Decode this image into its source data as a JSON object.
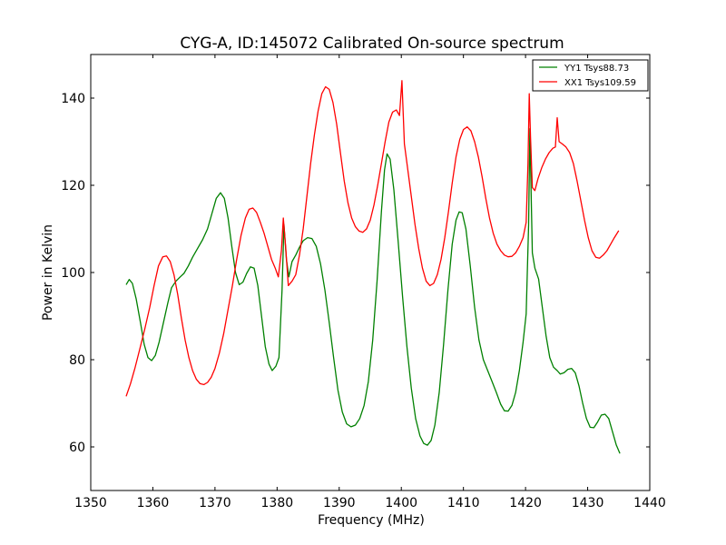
{
  "chart_data": {
    "type": "line",
    "title": "CYG-A, ID:145072 Calibrated On-source spectrum",
    "xlabel": "Frequency (MHz)",
    "ylabel": "Power in Kelvin",
    "xlim": [
      1350,
      1440
    ],
    "ylim": [
      50,
      150
    ],
    "xticks": [
      1350,
      1360,
      1370,
      1380,
      1390,
      1400,
      1410,
      1420,
      1430,
      1440
    ],
    "yticks": [
      60,
      80,
      100,
      120,
      140
    ],
    "grid": false,
    "legend_position": "top-right",
    "series": [
      {
        "name": "YY1 Tsys88.73",
        "color": "#008000",
        "points": [
          [
            1355.7,
            97.2
          ],
          [
            1356.2,
            98.4
          ],
          [
            1356.7,
            97.5
          ],
          [
            1357.3,
            94.0
          ],
          [
            1358.0,
            88.5
          ],
          [
            1358.6,
            83.5
          ],
          [
            1359.2,
            80.5
          ],
          [
            1359.8,
            79.8
          ],
          [
            1360.4,
            81.0
          ],
          [
            1361.0,
            84.0
          ],
          [
            1361.7,
            88.5
          ],
          [
            1362.4,
            93.0
          ],
          [
            1363.0,
            96.5
          ],
          [
            1363.7,
            98.0
          ],
          [
            1364.4,
            99.0
          ],
          [
            1365.0,
            99.8
          ],
          [
            1365.7,
            101.5
          ],
          [
            1366.4,
            103.5
          ],
          [
            1367.2,
            105.5
          ],
          [
            1368.0,
            107.5
          ],
          [
            1368.8,
            110.0
          ],
          [
            1369.5,
            113.5
          ],
          [
            1370.2,
            117.0
          ],
          [
            1370.9,
            118.3
          ],
          [
            1371.5,
            117.0
          ],
          [
            1372.1,
            112.5
          ],
          [
            1372.7,
            106.0
          ],
          [
            1373.3,
            100.0
          ],
          [
            1373.9,
            97.2
          ],
          [
            1374.5,
            97.8
          ],
          [
            1375.1,
            99.8
          ],
          [
            1375.7,
            101.3
          ],
          [
            1376.3,
            101.0
          ],
          [
            1376.9,
            97.0
          ],
          [
            1377.5,
            90.0
          ],
          [
            1378.1,
            83.0
          ],
          [
            1378.7,
            79.0
          ],
          [
            1379.2,
            77.5
          ],
          [
            1379.8,
            78.5
          ],
          [
            1380.3,
            80.5
          ],
          [
            1380.8,
            96.0
          ],
          [
            1381.1,
            111.0
          ],
          [
            1381.5,
            103.0
          ],
          [
            1381.9,
            99.0
          ],
          [
            1382.4,
            102.5
          ],
          [
            1383.0,
            104.0
          ],
          [
            1383.6,
            105.8
          ],
          [
            1384.2,
            107.3
          ],
          [
            1384.9,
            108.0
          ],
          [
            1385.6,
            107.8
          ],
          [
            1386.3,
            106.0
          ],
          [
            1387.0,
            102.0
          ],
          [
            1387.7,
            96.0
          ],
          [
            1388.4,
            88.5
          ],
          [
            1389.1,
            80.5
          ],
          [
            1389.8,
            73.0
          ],
          [
            1390.5,
            68.0
          ],
          [
            1391.2,
            65.3
          ],
          [
            1391.9,
            64.6
          ],
          [
            1392.6,
            65.0
          ],
          [
            1393.3,
            66.5
          ],
          [
            1394.0,
            69.5
          ],
          [
            1394.7,
            75.0
          ],
          [
            1395.4,
            84.5
          ],
          [
            1396.1,
            98.0
          ],
          [
            1396.8,
            114.0
          ],
          [
            1397.3,
            123.5
          ],
          [
            1397.7,
            127.2
          ],
          [
            1398.2,
            126.0
          ],
          [
            1398.8,
            119.0
          ],
          [
            1399.5,
            107.0
          ],
          [
            1400.2,
            94.5
          ],
          [
            1400.9,
            83.0
          ],
          [
            1401.6,
            73.5
          ],
          [
            1402.3,
            66.5
          ],
          [
            1403.0,
            62.5
          ],
          [
            1403.6,
            60.8
          ],
          [
            1404.2,
            60.4
          ],
          [
            1404.8,
            61.5
          ],
          [
            1405.4,
            65.0
          ],
          [
            1406.1,
            72.5
          ],
          [
            1406.8,
            83.5
          ],
          [
            1407.5,
            96.0
          ],
          [
            1408.2,
            106.5
          ],
          [
            1408.8,
            112.0
          ],
          [
            1409.3,
            113.9
          ],
          [
            1409.8,
            113.7
          ],
          [
            1410.4,
            110.0
          ],
          [
            1411.1,
            101.5
          ],
          [
            1411.8,
            92.0
          ],
          [
            1412.5,
            84.5
          ],
          [
            1413.2,
            80.0
          ],
          [
            1413.9,
            77.5
          ],
          [
            1414.6,
            75.0
          ],
          [
            1415.3,
            72.5
          ],
          [
            1416.0,
            69.8
          ],
          [
            1416.6,
            68.3
          ],
          [
            1417.2,
            68.2
          ],
          [
            1417.8,
            69.5
          ],
          [
            1418.4,
            72.5
          ],
          [
            1419.0,
            77.5
          ],
          [
            1419.6,
            84.0
          ],
          [
            1420.1,
            90.5
          ],
          [
            1420.5,
            111.0
          ],
          [
            1420.7,
            133.0
          ],
          [
            1420.9,
            118.0
          ],
          [
            1421.1,
            104.5
          ],
          [
            1421.5,
            101.0
          ],
          [
            1422.1,
            98.5
          ],
          [
            1422.7,
            92.0
          ],
          [
            1423.3,
            85.5
          ],
          [
            1423.9,
            80.5
          ],
          [
            1424.5,
            78.3
          ],
          [
            1425.1,
            77.5
          ],
          [
            1425.6,
            76.7
          ],
          [
            1426.2,
            77.0
          ],
          [
            1426.8,
            77.8
          ],
          [
            1427.4,
            78.0
          ],
          [
            1428.0,
            77.0
          ],
          [
            1428.6,
            74.0
          ],
          [
            1429.2,
            70.0
          ],
          [
            1429.8,
            66.5
          ],
          [
            1430.4,
            64.5
          ],
          [
            1431.0,
            64.4
          ],
          [
            1431.6,
            65.7
          ],
          [
            1432.2,
            67.3
          ],
          [
            1432.8,
            67.5
          ],
          [
            1433.4,
            66.5
          ],
          [
            1434.0,
            63.5
          ],
          [
            1434.6,
            60.5
          ],
          [
            1435.2,
            58.5
          ]
        ]
      },
      {
        "name": "XX1 Tsys109.59",
        "color": "#ff0000",
        "points": [
          [
            1355.7,
            71.6
          ],
          [
            1356.4,
            74.5
          ],
          [
            1357.1,
            78.0
          ],
          [
            1357.9,
            82.5
          ],
          [
            1358.7,
            87.0
          ],
          [
            1359.5,
            92.0
          ],
          [
            1360.2,
            97.0
          ],
          [
            1360.9,
            101.5
          ],
          [
            1361.6,
            103.6
          ],
          [
            1362.2,
            103.8
          ],
          [
            1362.8,
            102.5
          ],
          [
            1363.4,
            99.5
          ],
          [
            1364.0,
            95.0
          ],
          [
            1364.6,
            89.5
          ],
          [
            1365.2,
            84.5
          ],
          [
            1365.8,
            80.5
          ],
          [
            1366.4,
            77.5
          ],
          [
            1367.0,
            75.5
          ],
          [
            1367.6,
            74.5
          ],
          [
            1368.2,
            74.3
          ],
          [
            1368.8,
            74.8
          ],
          [
            1369.4,
            76.0
          ],
          [
            1370.0,
            78.0
          ],
          [
            1370.7,
            81.5
          ],
          [
            1371.4,
            86.0
          ],
          [
            1372.1,
            91.5
          ],
          [
            1372.8,
            97.0
          ],
          [
            1373.5,
            103.0
          ],
          [
            1374.2,
            108.5
          ],
          [
            1374.9,
            112.5
          ],
          [
            1375.5,
            114.5
          ],
          [
            1376.1,
            114.8
          ],
          [
            1376.7,
            113.8
          ],
          [
            1377.3,
            111.5
          ],
          [
            1377.9,
            109.0
          ],
          [
            1378.5,
            106.0
          ],
          [
            1379.1,
            103.0
          ],
          [
            1379.7,
            101.0
          ],
          [
            1380.2,
            99.0
          ],
          [
            1380.7,
            105.0
          ],
          [
            1381.0,
            112.5
          ],
          [
            1381.4,
            105.5
          ],
          [
            1381.8,
            97.0
          ],
          [
            1382.4,
            98.0
          ],
          [
            1383.0,
            99.5
          ],
          [
            1383.6,
            104.0
          ],
          [
            1384.2,
            110.0
          ],
          [
            1384.8,
            117.5
          ],
          [
            1385.4,
            125.0
          ],
          [
            1386.0,
            131.5
          ],
          [
            1386.6,
            137.0
          ],
          [
            1387.2,
            141.0
          ],
          [
            1387.8,
            142.6
          ],
          [
            1388.4,
            142.0
          ],
          [
            1389.0,
            139.0
          ],
          [
            1389.6,
            134.0
          ],
          [
            1390.2,
            127.5
          ],
          [
            1390.8,
            121.0
          ],
          [
            1391.4,
            116.0
          ],
          [
            1392.0,
            112.5
          ],
          [
            1392.6,
            110.5
          ],
          [
            1393.2,
            109.5
          ],
          [
            1393.8,
            109.2
          ],
          [
            1394.4,
            110.0
          ],
          [
            1395.0,
            112.0
          ],
          [
            1395.6,
            115.5
          ],
          [
            1396.2,
            120.0
          ],
          [
            1396.8,
            125.0
          ],
          [
            1397.4,
            130.0
          ],
          [
            1398.0,
            134.5
          ],
          [
            1398.6,
            136.8
          ],
          [
            1399.2,
            137.3
          ],
          [
            1399.7,
            136.0
          ],
          [
            1400.1,
            144.0
          ],
          [
            1400.5,
            129.5
          ],
          [
            1401.0,
            124.0
          ],
          [
            1401.6,
            117.5
          ],
          [
            1402.2,
            111.0
          ],
          [
            1402.8,
            105.5
          ],
          [
            1403.4,
            101.0
          ],
          [
            1404.0,
            98.0
          ],
          [
            1404.6,
            97.0
          ],
          [
            1405.2,
            97.5
          ],
          [
            1405.8,
            99.5
          ],
          [
            1406.4,
            103.0
          ],
          [
            1407.0,
            108.0
          ],
          [
            1407.6,
            114.0
          ],
          [
            1408.2,
            120.5
          ],
          [
            1408.8,
            126.5
          ],
          [
            1409.4,
            130.5
          ],
          [
            1410.0,
            132.8
          ],
          [
            1410.6,
            133.4
          ],
          [
            1411.2,
            132.5
          ],
          [
            1411.8,
            130.0
          ],
          [
            1412.4,
            126.5
          ],
          [
            1413.0,
            122.0
          ],
          [
            1413.6,
            117.0
          ],
          [
            1414.2,
            112.5
          ],
          [
            1414.8,
            109.0
          ],
          [
            1415.4,
            106.5
          ],
          [
            1416.0,
            105.0
          ],
          [
            1416.6,
            104.0
          ],
          [
            1417.2,
            103.6
          ],
          [
            1417.8,
            103.7
          ],
          [
            1418.4,
            104.5
          ],
          [
            1419.0,
            106.0
          ],
          [
            1419.6,
            108.0
          ],
          [
            1420.1,
            111.5
          ],
          [
            1420.4,
            125.0
          ],
          [
            1420.6,
            141.0
          ],
          [
            1420.8,
            131.0
          ],
          [
            1421.1,
            119.5
          ],
          [
            1421.5,
            118.8
          ],
          [
            1422.0,
            121.5
          ],
          [
            1422.6,
            124.0
          ],
          [
            1423.2,
            126.0
          ],
          [
            1423.8,
            127.5
          ],
          [
            1424.4,
            128.5
          ],
          [
            1424.8,
            128.8
          ],
          [
            1425.1,
            135.5
          ],
          [
            1425.4,
            130.0
          ],
          [
            1425.9,
            129.5
          ],
          [
            1426.5,
            128.8
          ],
          [
            1427.1,
            127.5
          ],
          [
            1427.7,
            125.0
          ],
          [
            1428.3,
            121.0
          ],
          [
            1428.9,
            116.5
          ],
          [
            1429.5,
            112.0
          ],
          [
            1430.1,
            108.0
          ],
          [
            1430.7,
            105.0
          ],
          [
            1431.3,
            103.5
          ],
          [
            1431.9,
            103.3
          ],
          [
            1432.5,
            104.0
          ],
          [
            1433.1,
            105.0
          ],
          [
            1433.7,
            106.5
          ],
          [
            1434.3,
            108.0
          ],
          [
            1435.0,
            109.6
          ]
        ]
      }
    ]
  }
}
